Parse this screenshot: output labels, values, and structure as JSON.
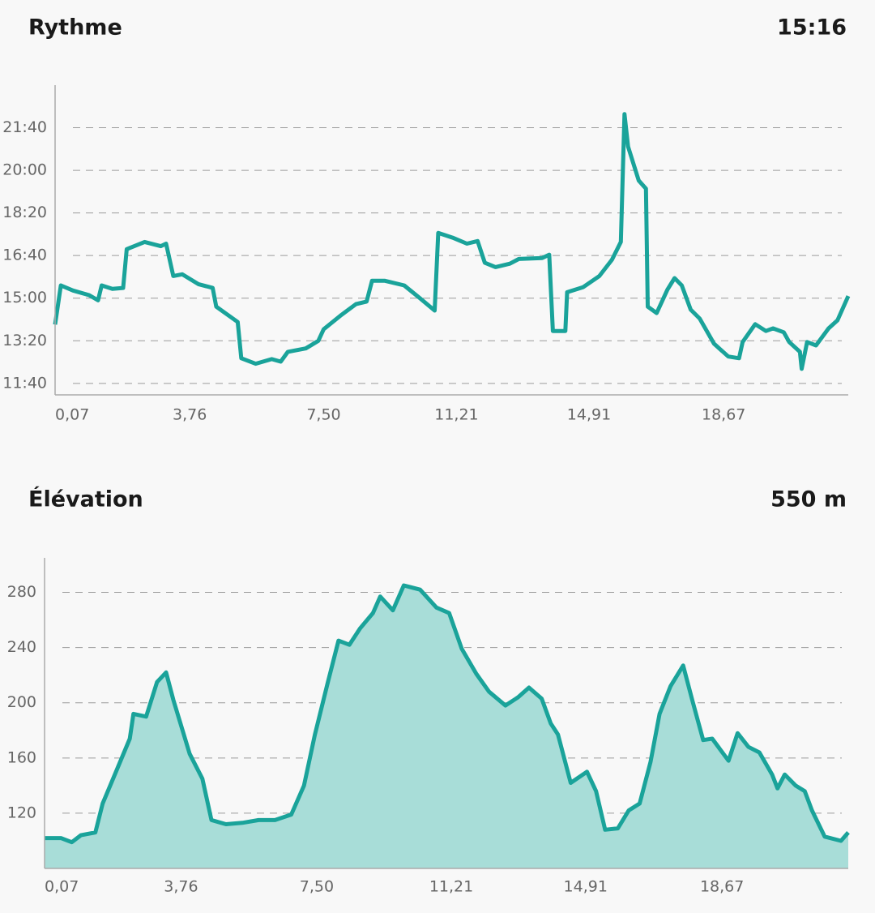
{
  "chart_data": [
    {
      "type": "line",
      "title": "Rythme",
      "headline_value": "15:16",
      "color": "#1aa39a",
      "grid": true,
      "xlim": [
        0,
        22.15
      ],
      "ylim": [
        673,
        1400
      ],
      "xticks": [
        {
          "value": 0.07,
          "label": "0,07"
        },
        {
          "value": 3.76,
          "label": "3,76"
        },
        {
          "value": 7.5,
          "label": "7,50"
        },
        {
          "value": 11.21,
          "label": "11,21"
        },
        {
          "value": 14.91,
          "label": "14,91"
        },
        {
          "value": 18.67,
          "label": "18,67"
        }
      ],
      "yticks": [
        {
          "value": 700,
          "label": "11:40"
        },
        {
          "value": 800,
          "label": "13:20"
        },
        {
          "value": 900,
          "label": "15:00"
        },
        {
          "value": 1000,
          "label": "16:40"
        },
        {
          "value": 1100,
          "label": "18:20"
        },
        {
          "value": 1200,
          "label": "20:00"
        },
        {
          "value": 1300,
          "label": "21:40"
        }
      ],
      "x": [
        0,
        0.16,
        0.5,
        0.95,
        1.2,
        1.3,
        1.6,
        1.9,
        2.0,
        2.5,
        2.95,
        3.1,
        3.3,
        3.55,
        4.0,
        4.4,
        4.5,
        5.1,
        5.2,
        5.6,
        6.05,
        6.3,
        6.5,
        7.0,
        7.35,
        7.5,
        8.0,
        8.4,
        8.7,
        8.85,
        9.2,
        9.75,
        10.2,
        10.6,
        10.7,
        11.1,
        11.5,
        11.8,
        12.0,
        12.3,
        12.7,
        12.95,
        13.6,
        13.8,
        13.9,
        14.25,
        14.3,
        14.75,
        15.2,
        15.55,
        15.8,
        15.9,
        16.0,
        16.3,
        16.5,
        16.55,
        16.8,
        17.1,
        17.3,
        17.5,
        17.75,
        18.0,
        18.4,
        18.8,
        19.1,
        19.2,
        19.55,
        19.85,
        20.05,
        20.35,
        20.5,
        20.8,
        20.85,
        21.0,
        21.25,
        21.6,
        21.85,
        22.15
      ],
      "values": [
        838,
        930,
        918,
        907,
        895,
        930,
        922,
        924,
        1015,
        1032,
        1022,
        1028,
        952,
        956,
        933,
        924,
        880,
        844,
        759,
        746,
        757,
        751,
        774,
        782,
        800,
        827,
        861,
        886,
        892,
        941,
        941,
        930,
        899,
        871,
        1053,
        1042,
        1028,
        1034,
        983,
        973,
        981,
        992,
        994,
        1002,
        823,
        823,
        914,
        926,
        952,
        990,
        1032,
        1332,
        1256,
        1176,
        1157,
        880,
        865,
        920,
        947,
        930,
        873,
        852,
        793,
        763,
        759,
        797,
        839,
        823,
        829,
        820,
        797,
        774,
        734,
        797,
        789,
        829,
        848,
        905
      ]
    },
    {
      "type": "area",
      "title": "Élévation",
      "headline_value": "550 m",
      "color": "#1aa39a",
      "fill_color": "#a8ddd8",
      "grid": true,
      "xlim": [
        0,
        22.15
      ],
      "ylim": [
        80,
        305
      ],
      "xticks": [
        {
          "value": 0.07,
          "label": "0,07"
        },
        {
          "value": 3.76,
          "label": "3,76"
        },
        {
          "value": 7.5,
          "label": "7,50"
        },
        {
          "value": 11.21,
          "label": "11,21"
        },
        {
          "value": 14.91,
          "label": "14,91"
        },
        {
          "value": 18.67,
          "label": "18,67"
        }
      ],
      "yticks": [
        120,
        160,
        200,
        240,
        280
      ],
      "x": [
        0,
        0.45,
        0.75,
        1.0,
        1.4,
        1.6,
        2.0,
        2.35,
        2.45,
        2.8,
        3.1,
        3.35,
        3.55,
        4.0,
        4.35,
        4.6,
        5.0,
        5.45,
        5.9,
        6.35,
        6.8,
        7.15,
        7.45,
        7.8,
        8.1,
        8.4,
        8.7,
        9.05,
        9.25,
        9.6,
        9.9,
        10.35,
        10.8,
        11.15,
        11.5,
        11.9,
        12.25,
        12.7,
        13.05,
        13.35,
        13.7,
        13.95,
        14.15,
        14.5,
        14.95,
        15.2,
        15.45,
        15.8,
        16.1,
        16.4,
        16.7,
        16.95,
        17.25,
        17.6,
        17.85,
        18.15,
        18.4,
        18.85,
        19.1,
        19.4,
        19.7,
        20.05,
        20.2,
        20.4,
        20.7,
        20.95,
        21.15,
        21.5,
        21.95,
        22.15
      ],
      "values": [
        102,
        102,
        99,
        104,
        106,
        127,
        152,
        174,
        192,
        190,
        215,
        222,
        202,
        163,
        145,
        115,
        112,
        113,
        115,
        115,
        119,
        140,
        177,
        214,
        245,
        242,
        254,
        265,
        277,
        267,
        285,
        282,
        269,
        265,
        239,
        221,
        208,
        198,
        204,
        211,
        203,
        185,
        177,
        142,
        150,
        136,
        108,
        109,
        122,
        127,
        157,
        192,
        212,
        227,
        202,
        173,
        174,
        158,
        178,
        168,
        164,
        148,
        138,
        148,
        140,
        136,
        122,
        103,
        100,
        106
      ]
    }
  ]
}
